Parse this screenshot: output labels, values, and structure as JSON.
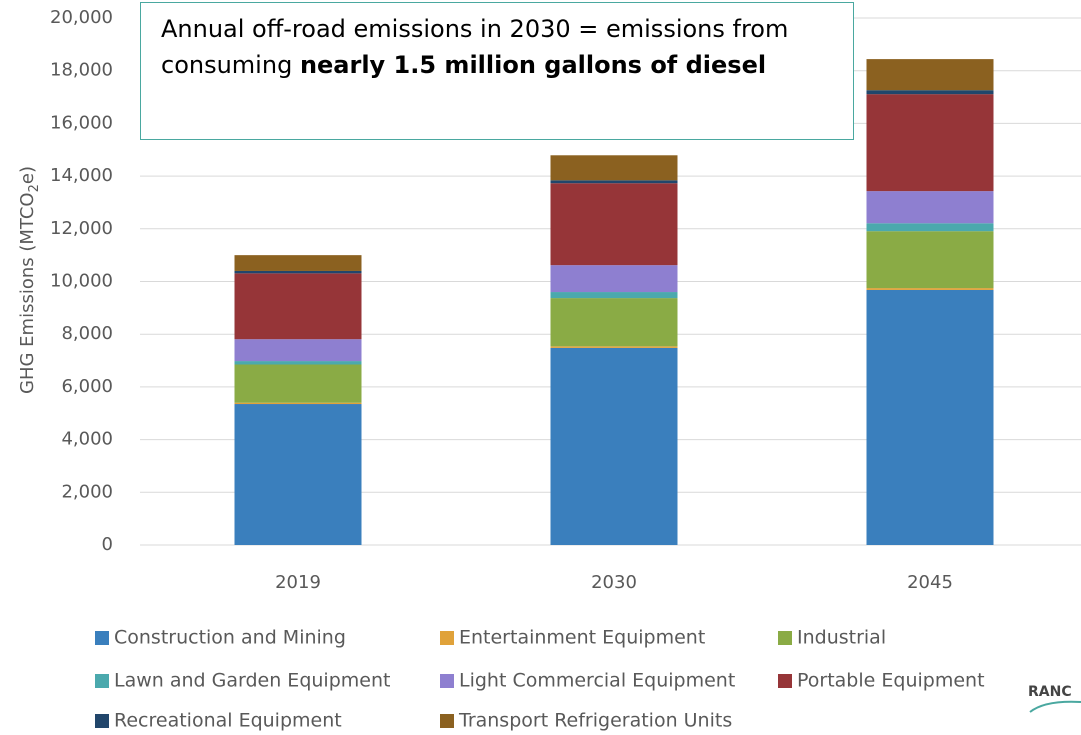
{
  "chart_data": {
    "type": "stacked_bar",
    "y_label": [
      "GHG Emissions (MTCO",
      "2",
      "e)"
    ],
    "annotation": {
      "text": "Annual off-road emissions in 2030 = emissions from consuming ",
      "bold": "nearly 1.5 million gallons of diesel"
    },
    "logo": "RANC",
    "categories": [
      "2019",
      "2030",
      "2045"
    ],
    "ylim": [
      0,
      20000
    ],
    "yticks": [
      0,
      {
        "value": 2000,
        "label": "2,000"
      },
      {
        "value": 4000,
        "label": "4,000"
      },
      {
        "value": 6000,
        "label": "6,000"
      },
      {
        "value": 8000,
        "label": "8,000"
      },
      {
        "value": 10000,
        "label": "10,000"
      },
      {
        "value": 12000,
        "label": "12,000"
      },
      {
        "value": 14000,
        "label": "14,000"
      },
      {
        "value": 16000,
        "label": "16,000"
      },
      {
        "value": 18000,
        "label": "18,000"
      },
      {
        "value": 20000,
        "label": "20,000"
      }
    ],
    "grid": true,
    "series": [
      {
        "name": "Construction and Mining",
        "color": "#3a7fbd",
        "values": [
          5350,
          7480,
          9680
        ]
      },
      {
        "name": "Entertainment Equipment",
        "color": "#e0a23a",
        "values": [
          50,
          60,
          70
        ]
      },
      {
        "name": "Industrial",
        "color": "#8aab45",
        "values": [
          1450,
          1830,
          2160
        ]
      },
      {
        "name": "Lawn and Garden Equipment",
        "color": "#4ba9ad",
        "values": [
          130,
          230,
          300
        ]
      },
      {
        "name": "Light Commercial Equipment",
        "color": "#8e7fd0",
        "values": [
          830,
          1020,
          1220
        ]
      },
      {
        "name": "Portable Equipment",
        "color": "#963538",
        "values": [
          2500,
          3110,
          3680
        ]
      },
      {
        "name": "Recreational Equipment",
        "color": "#21466b",
        "values": [
          90,
          110,
          150
        ]
      },
      {
        "name": "Transport Refrigeration Units",
        "color": "#8b6120",
        "values": [
          600,
          950,
          1180
        ]
      }
    ]
  }
}
